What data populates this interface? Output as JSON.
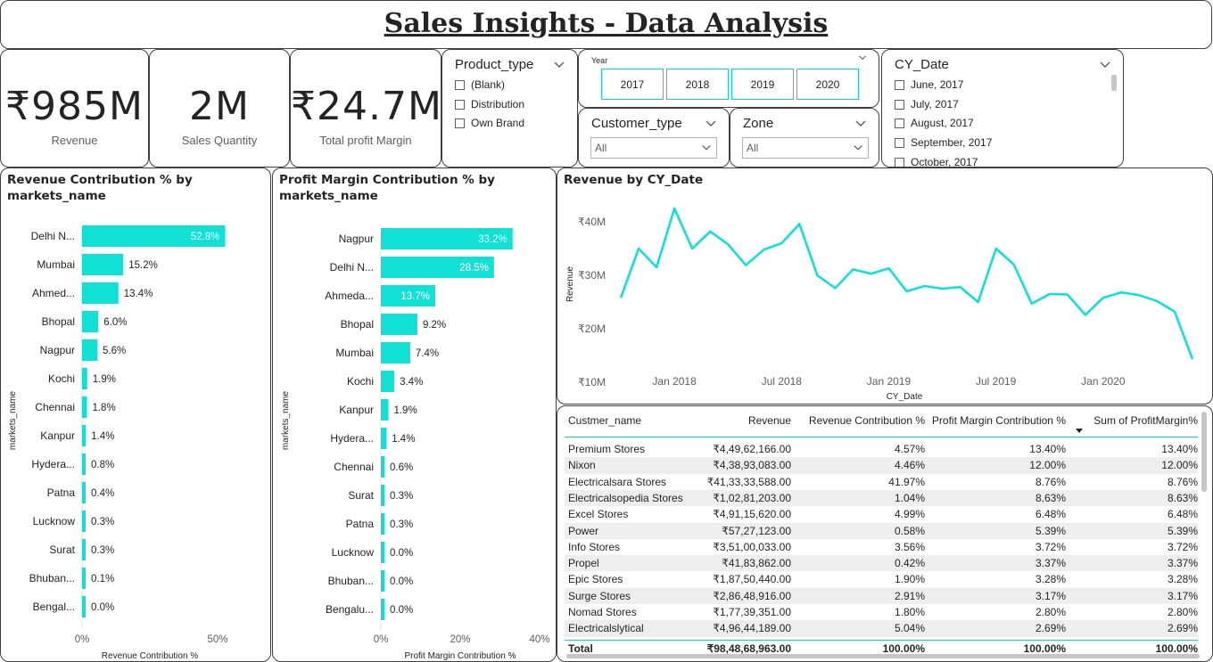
{
  "title": "Sales Insights - Data Analysis",
  "kpis": [
    {
      "value": "₹985M",
      "label": "Revenue"
    },
    {
      "value": "2M",
      "label": "Sales Quantity"
    },
    {
      "value": "₹24.7M",
      "label": "Total profit Margin"
    }
  ],
  "product_type": {
    "title": "Product_type",
    "options": [
      "(Blank)",
      "Distribution",
      "Own Brand"
    ]
  },
  "year": {
    "title": "Year",
    "options": [
      "2017",
      "2018",
      "2019",
      "2020"
    ]
  },
  "customer_type": {
    "title": "Customer_type",
    "value": "All"
  },
  "zone": {
    "title": "Zone",
    "value": "All"
  },
  "cy_date": {
    "title": "CY_Date",
    "options": [
      "June, 2017",
      "July, 2017",
      "August, 2017",
      "September, 2017",
      "October, 2017"
    ]
  },
  "charts": {
    "revenue_contribution": {
      "title_line1": "Revenue Contribution % by",
      "title_line2": "markets_name"
    },
    "profit_contribution": {
      "title_line1": "Profit Margin Contribution % by",
      "title_line2": "markets_name"
    },
    "revenue_by_date": {
      "title": "Revenue by CY_Date"
    }
  },
  "chart_data": [
    {
      "type": "bar",
      "orientation": "horizontal",
      "title": "Revenue Contribution % by markets_name",
      "xlabel": "Revenue Contribution %",
      "ylabel": "markets_name",
      "categories": [
        "Delhi N...",
        "Mumbai",
        "Ahmed...",
        "Bhopal",
        "Nagpur",
        "Kochi",
        "Chennai",
        "Kanpur",
        "Hydera...",
        "Patna",
        "Lucknow",
        "Surat",
        "Bhuban...",
        "Bengal..."
      ],
      "values": [
        52.8,
        15.2,
        13.4,
        6.0,
        5.6,
        1.9,
        1.8,
        1.4,
        0.8,
        0.4,
        0.3,
        0.3,
        0.1,
        0.0
      ],
      "data_labels": [
        "52.8%",
        "15.2%",
        "13.4%",
        "6.0%",
        "5.6%",
        "1.9%",
        "1.8%",
        "1.4%",
        "0.8%",
        "0.4%",
        "0.3%",
        "0.3%",
        "0.1%",
        "0.0%"
      ],
      "xlim": [
        0,
        50
      ],
      "xticks": [
        "0%",
        "50%"
      ],
      "color": "#11e0d4"
    },
    {
      "type": "bar",
      "orientation": "horizontal",
      "title": "Profit Margin Contribution % by markets_name",
      "xlabel": "Profit Margin Contribution %",
      "ylabel": "markets_name",
      "categories": [
        "Nagpur",
        "Delhi N...",
        "Ahmeda...",
        "Bhopal",
        "Mumbai",
        "Kochi",
        "Kanpur",
        "Hydera...",
        "Chennai",
        "Surat",
        "Patna",
        "Lucknow",
        "Bhuban...",
        "Bengalu..."
      ],
      "values": [
        33.2,
        28.5,
        13.7,
        9.2,
        7.4,
        3.4,
        1.9,
        1.4,
        0.6,
        0.3,
        0.3,
        0.0,
        0.0,
        0.0
      ],
      "data_labels": [
        "33.2%",
        "28.5%",
        "13.7%",
        "9.2%",
        "7.4%",
        "3.4%",
        "1.9%",
        "1.4%",
        "0.6%",
        "0.3%",
        "0.3%",
        "0.0%",
        "0.0%",
        "0.0%"
      ],
      "xlim": [
        0,
        40
      ],
      "xticks": [
        "0%",
        "20%",
        "40%"
      ],
      "color": "#11e0d4"
    },
    {
      "type": "line",
      "title": "Revenue by CY_Date",
      "xlabel": "CY_Date",
      "ylabel": "Revenue",
      "x": [
        "2017-10",
        "2017-11",
        "2017-12",
        "2018-01",
        "2018-02",
        "2018-03",
        "2018-04",
        "2018-05",
        "2018-06",
        "2018-07",
        "2018-08",
        "2018-09",
        "2018-10",
        "2018-11",
        "2018-12",
        "2019-01",
        "2019-02",
        "2019-03",
        "2019-04",
        "2019-05",
        "2019-06",
        "2019-07",
        "2019-08",
        "2019-09",
        "2019-10",
        "2019-11",
        "2019-12",
        "2020-01",
        "2020-02",
        "2020-03",
        "2020-04",
        "2020-05",
        "2020-06"
      ],
      "series": [
        {
          "values": [
            25.8,
            35,
            31.5,
            42.5,
            35,
            38.2,
            35.8,
            31.9,
            34.8,
            36,
            39.6,
            30,
            27.6,
            31.1,
            30.3,
            31.3,
            27,
            28,
            27.5,
            27.8,
            25,
            35,
            32,
            24.7,
            26.5,
            26.4,
            22.6,
            25.8,
            26.8,
            26.3,
            25.2,
            23.2,
            14.3
          ]
        }
      ],
      "ylim": [
        10,
        45
      ],
      "yticks": [
        "₹10M",
        "₹20M",
        "₹30M",
        "₹40M"
      ],
      "xticks": [
        "Jan 2018",
        "Jul 2018",
        "Jan 2019",
        "Jul 2019",
        "Jan 2020"
      ],
      "color": "#11e0d4"
    }
  ],
  "table": {
    "headers": [
      "Custmer_name",
      "Revenue",
      "Revenue Contribution %",
      "Profit Margin Contribution %",
      "Sum of ProfitMargin%"
    ],
    "rows": [
      [
        "Premium Stores",
        "₹4,49,62,166.00",
        "4.57%",
        "13.40%",
        "13.40%"
      ],
      [
        "Nixon",
        "₹4,38,93,083.00",
        "4.46%",
        "12.00%",
        "12.00%"
      ],
      [
        "Electricalsara Stores",
        "₹41,33,33,588.00",
        "41.97%",
        "8.76%",
        "8.76%"
      ],
      [
        "Electricalsopedia Stores",
        "₹1,02,81,203.00",
        "1.04%",
        "8.63%",
        "8.63%"
      ],
      [
        "Excel Stores",
        "₹4,91,15,620.00",
        "4.99%",
        "6.48%",
        "6.48%"
      ],
      [
        "Power",
        "₹57,27,123.00",
        "0.58%",
        "5.39%",
        "5.39%"
      ],
      [
        "Info Stores",
        "₹3,51,00,033.00",
        "3.56%",
        "3.72%",
        "3.72%"
      ],
      [
        "Propel",
        "₹41,83,862.00",
        "0.42%",
        "3.37%",
        "3.37%"
      ],
      [
        "Epic Stores",
        "₹1,87,50,440.00",
        "1.90%",
        "3.28%",
        "3.28%"
      ],
      [
        "Surge Stores",
        "₹2,86,48,916.00",
        "2.91%",
        "3.17%",
        "3.17%"
      ],
      [
        "Nomad Stores",
        "₹1,77,39,351.00",
        "1.80%",
        "2.80%",
        "2.80%"
      ],
      [
        "Electricalslytical",
        "₹4,96,44,189.00",
        "5.04%",
        "2.69%",
        "2.69%"
      ]
    ],
    "total": [
      "Total",
      "₹98,48,68,963.00",
      "100.00%",
      "100.00%",
      "100.00%"
    ]
  }
}
